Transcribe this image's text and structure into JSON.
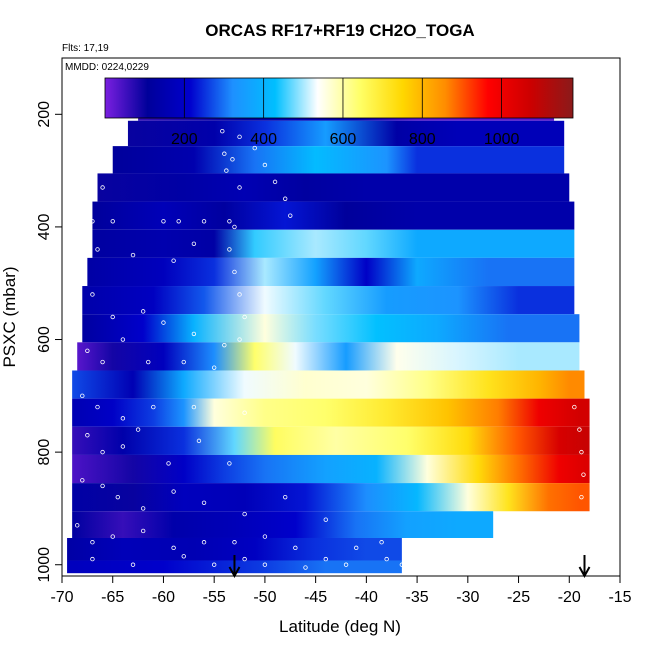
{
  "chart_data": {
    "type": "heatmap",
    "title": "ORCAS RF17+RF19 CH2O_TOGA",
    "flights_note": "Flts: 17,19",
    "date_note": "MMDD: 0224,0229",
    "xlabel": "Latitude (deg N)",
    "ylabel": "PSXC (mbar)",
    "xlim": [
      -70,
      -15
    ],
    "ylim": [
      1020,
      100
    ],
    "x_ticks": [
      -70,
      -65,
      -60,
      -55,
      -50,
      -45,
      -40,
      -35,
      -30,
      -25,
      -20,
      -15
    ],
    "y_ticks": [
      200,
      400,
      600,
      800,
      1000
    ],
    "colorbar": {
      "range": [
        0,
        1180
      ],
      "ticks": [
        200,
        400,
        600,
        800,
        1000
      ],
      "colors": [
        "#7a1fe0",
        "#00009a",
        "#0000cd",
        "#1e90ff",
        "#00bfff",
        "#ffffff",
        "#ffff66",
        "#ffd700",
        "#ff8c00",
        "#ff0000",
        "#cc0000",
        "#8b1a1a"
      ]
    },
    "arrows_lat": [
      -53,
      -18.5
    ],
    "bands": [
      {
        "p": 190,
        "xmin": -62.5,
        "xmax": -21.5,
        "segments": [
          [
            -62.5,
            60
          ],
          [
            -52,
            120
          ],
          [
            -47,
            160
          ],
          [
            -41,
            140
          ],
          [
            -35,
            30
          ],
          [
            -30,
            25
          ]
        ]
      },
      {
        "p": 233,
        "xmin": -63.5,
        "xmax": -20.5,
        "segments": [
          [
            -63.5,
            100
          ],
          [
            -55,
            140
          ],
          [
            -50,
            250
          ],
          [
            -44,
            350
          ],
          [
            -37,
            130
          ],
          [
            -31,
            170
          ]
        ]
      },
      {
        "p": 280,
        "xmin": -65,
        "xmax": -20.5,
        "segments": [
          [
            -65,
            110
          ],
          [
            -57,
            150
          ],
          [
            -51,
            300
          ],
          [
            -45,
            420
          ],
          [
            -38,
            330
          ],
          [
            -35,
            250
          ]
        ]
      },
      {
        "p": 330,
        "xmin": -66.5,
        "xmax": -20,
        "segments": [
          [
            -66.5,
            100
          ],
          [
            -58,
            130
          ],
          [
            -52,
            160
          ],
          [
            -46,
            120
          ],
          [
            -40,
            140
          ]
        ]
      },
      {
        "p": 380,
        "xmin": -67,
        "xmax": -19.5,
        "segments": [
          [
            -67,
            110
          ],
          [
            -60,
            170
          ],
          [
            -54,
            120
          ],
          [
            -48,
            230
          ],
          [
            -42,
            110
          ],
          [
            -35,
            140
          ]
        ]
      },
      {
        "p": 430,
        "xmin": -67,
        "xmax": -19.5,
        "segments": [
          [
            -67,
            120
          ],
          [
            -60,
            150
          ],
          [
            -55,
            130
          ],
          [
            -51,
            450
          ],
          [
            -45,
            500
          ],
          [
            -40,
            470
          ],
          [
            -35,
            380
          ]
        ]
      },
      {
        "p": 480,
        "xmin": -67.5,
        "xmax": -19.5,
        "segments": [
          [
            -67.5,
            130
          ],
          [
            -60,
            180
          ],
          [
            -55,
            250
          ],
          [
            -50,
            500
          ],
          [
            -45,
            360
          ],
          [
            -40,
            200
          ],
          [
            -35,
            380
          ],
          [
            -28,
            300
          ]
        ]
      },
      {
        "p": 530,
        "xmin": -68,
        "xmax": -19.5,
        "segments": [
          [
            -68,
            140
          ],
          [
            -61,
            190
          ],
          [
            -56,
            280
          ],
          [
            -50,
            530
          ],
          [
            -44,
            470
          ],
          [
            -38,
            350
          ],
          [
            -31,
            330
          ],
          [
            -25,
            250
          ]
        ]
      },
      {
        "p": 580,
        "xmin": -68,
        "xmax": -19,
        "segments": [
          [
            -68,
            120
          ],
          [
            -62,
            210
          ],
          [
            -57,
            400
          ],
          [
            -50,
            560
          ],
          [
            -45,
            480
          ],
          [
            -39,
            430
          ],
          [
            -33,
            380
          ],
          [
            -26,
            300
          ]
        ]
      },
      {
        "p": 630,
        "xmin": -68.5,
        "xmax": -19,
        "segments": [
          [
            -68.5,
            30
          ],
          [
            -65,
            90
          ],
          [
            -60,
            180
          ],
          [
            -55,
            320
          ],
          [
            -51,
            640
          ],
          [
            -47,
            530
          ],
          [
            -42,
            350
          ],
          [
            -37,
            550
          ],
          [
            -31,
            520
          ],
          [
            -25,
            500
          ]
        ]
      },
      {
        "p": 680,
        "xmin": -69,
        "xmax": -18.5,
        "segments": [
          [
            -69,
            270
          ],
          [
            -63,
            160
          ],
          [
            -58,
            380
          ],
          [
            -52,
            530
          ],
          [
            -46,
            570
          ],
          [
            -40,
            560
          ],
          [
            -34,
            620
          ],
          [
            -28,
            720
          ],
          [
            -23,
            800
          ],
          [
            -20,
            860
          ]
        ]
      },
      {
        "p": 730,
        "xmin": -69,
        "xmax": -18,
        "segments": [
          [
            -69,
            160
          ],
          [
            -65,
            200
          ],
          [
            -61,
            260
          ],
          [
            -58,
            330
          ],
          [
            -55,
            560
          ],
          [
            -50,
            620
          ],
          [
            -44,
            640
          ],
          [
            -38,
            700
          ],
          [
            -32,
            780
          ],
          [
            -27,
            870
          ],
          [
            -23,
            1000
          ],
          [
            -19,
            1060
          ]
        ]
      },
      {
        "p": 780,
        "xmin": -69,
        "xmax": -18,
        "segments": [
          [
            -69,
            60
          ],
          [
            -64,
            140
          ],
          [
            -58,
            250
          ],
          [
            -53,
            470
          ],
          [
            -49,
            650
          ],
          [
            -43,
            600
          ],
          [
            -36,
            640
          ],
          [
            -30,
            740
          ],
          [
            -25,
            900
          ],
          [
            -21,
            1050
          ],
          [
            -18.5,
            1080
          ]
        ]
      },
      {
        "p": 830,
        "xmin": -69,
        "xmax": -18,
        "segments": [
          [
            -69,
            40
          ],
          [
            -63,
            90
          ],
          [
            -58,
            200
          ],
          [
            -54,
            260
          ],
          [
            -50,
            300
          ],
          [
            -44,
            360
          ],
          [
            -39,
            400
          ],
          [
            -34,
            560
          ],
          [
            -29,
            740
          ],
          [
            -25,
            880
          ],
          [
            -21,
            1000
          ],
          [
            -18.5,
            1040
          ]
        ]
      },
      {
        "p": 880,
        "xmin": -69,
        "xmax": -18,
        "segments": [
          [
            -69,
            130
          ],
          [
            -63,
            100
          ],
          [
            -58,
            180
          ],
          [
            -52,
            170
          ],
          [
            -46,
            230
          ],
          [
            -40,
            320
          ],
          [
            -35,
            410
          ],
          [
            -30,
            560
          ],
          [
            -26,
            720
          ],
          [
            -22,
            880
          ],
          [
            -19,
            900
          ]
        ]
      },
      {
        "p": 930,
        "xmin": -69,
        "xmax": -27.5,
        "segments": [
          [
            -69,
            120
          ],
          [
            -64,
            60
          ],
          [
            -59,
            140
          ],
          [
            -53,
            170
          ],
          [
            -47,
            210
          ],
          [
            -41,
            300
          ],
          [
            -36,
            360
          ],
          [
            -31,
            380
          ]
        ]
      },
      {
        "p": 975,
        "xmin": -69.5,
        "xmax": -36.5,
        "segments": [
          [
            -69.5,
            130
          ],
          [
            -64,
            170
          ],
          [
            -57,
            160
          ],
          [
            -51,
            190
          ],
          [
            -45,
            250
          ],
          [
            -40,
            270
          ]
        ]
      },
      {
        "p": 1010,
        "xmin": -69.5,
        "xmax": -36.5,
        "segments": [
          [
            -69.5,
            180
          ],
          [
            -60,
            210
          ],
          [
            -50,
            260
          ],
          [
            -44,
            300
          ]
        ]
      }
    ],
    "points": [
      [
        -61.5,
        175
      ],
      [
        -60,
        175
      ],
      [
        -58,
        175
      ],
      [
        -56,
        175
      ],
      [
        -54.8,
        180
      ],
      [
        -54.5,
        200
      ],
      [
        -54.2,
        230
      ],
      [
        -54,
        270
      ],
      [
        -53.8,
        300
      ],
      [
        -51.5,
        180
      ],
      [
        -50,
        180
      ],
      [
        -48,
        180
      ],
      [
        -46.5,
        180
      ],
      [
        -35.5,
        180
      ],
      [
        -33,
        180
      ],
      [
        -30,
        180
      ],
      [
        -27,
        180
      ],
      [
        -24.5,
        180
      ],
      [
        -52.5,
        240
      ],
      [
        -51,
        260
      ],
      [
        -50,
        290
      ],
      [
        -49,
        320
      ],
      [
        -48,
        350
      ],
      [
        -47.5,
        380
      ],
      [
        -52.5,
        330
      ],
      [
        -53.2,
        280
      ],
      [
        -66,
        330
      ],
      [
        -67,
        390
      ],
      [
        -65,
        390
      ],
      [
        -60,
        390
      ],
      [
        -58.5,
        390
      ],
      [
        -56,
        390
      ],
      [
        -53.5,
        390
      ],
      [
        -53,
        400
      ],
      [
        -66.5,
        440
      ],
      [
        -63,
        450
      ],
      [
        -59,
        460
      ],
      [
        -57,
        430
      ],
      [
        -53.5,
        440
      ],
      [
        -53,
        480
      ],
      [
        -52.5,
        520
      ],
      [
        -52,
        560
      ],
      [
        -67,
        520
      ],
      [
        -65,
        560
      ],
      [
        -62,
        550
      ],
      [
        -60,
        570
      ],
      [
        -57,
        590
      ],
      [
        -54,
        610
      ],
      [
        -52.5,
        600
      ],
      [
        -67.5,
        620
      ],
      [
        -66,
        640
      ],
      [
        -64,
        600
      ],
      [
        -61.5,
        640
      ],
      [
        -58,
        640
      ],
      [
        -55,
        650
      ],
      [
        -68,
        700
      ],
      [
        -66.5,
        720
      ],
      [
        -64,
        740
      ],
      [
        -61,
        720
      ],
      [
        -57,
        720
      ],
      [
        -52,
        730
      ],
      [
        -67.5,
        770
      ],
      [
        -66,
        800
      ],
      [
        -64,
        790
      ],
      [
        -62.5,
        760
      ],
      [
        -59.5,
        820
      ],
      [
        -56.5,
        780
      ],
      [
        -53.5,
        820
      ],
      [
        -68,
        850
      ],
      [
        -66,
        860
      ],
      [
        -64.5,
        880
      ],
      [
        -62,
        900
      ],
      [
        -59,
        870
      ],
      [
        -56,
        890
      ],
      [
        -52,
        910
      ],
      [
        -48,
        880
      ],
      [
        -44,
        920
      ],
      [
        -68.5,
        930
      ],
      [
        -67,
        960
      ],
      [
        -65,
        950
      ],
      [
        -62,
        940
      ],
      [
        -59,
        970
      ],
      [
        -56,
        960
      ],
      [
        -53,
        960
      ],
      [
        -50,
        950
      ],
      [
        -47,
        970
      ],
      [
        -44,
        990
      ],
      [
        -41,
        970
      ],
      [
        -38.5,
        960
      ],
      [
        -67,
        990
      ],
      [
        -63,
        1000
      ],
      [
        -58,
        985
      ],
      [
        -55,
        1000
      ],
      [
        -52,
        990
      ],
      [
        -50,
        1000
      ],
      [
        -46,
        1005
      ],
      [
        -42,
        1000
      ],
      [
        -38,
        990
      ],
      [
        -36.5,
        1000
      ],
      [
        -19.5,
        720
      ],
      [
        -19,
        760
      ],
      [
        -18.8,
        800
      ],
      [
        -18.6,
        840
      ],
      [
        -18.8,
        880
      ]
    ]
  }
}
